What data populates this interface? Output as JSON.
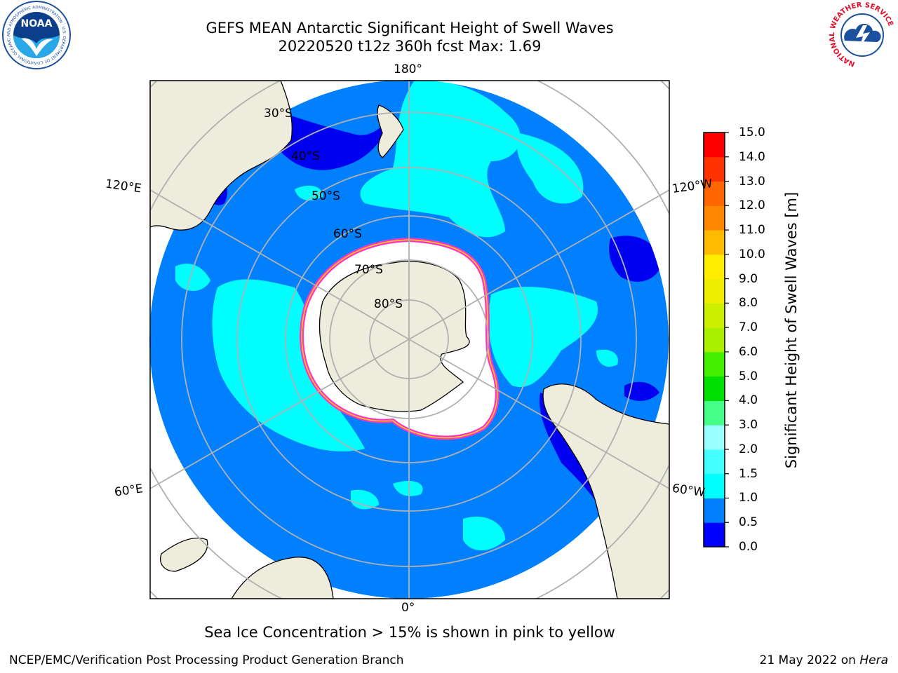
{
  "header": {
    "title_line1": "GEFS MEAN Antarctic Significant Height of Swell Waves",
    "title_line2": "20220520 t12z 360h fcst   Max: 1.69"
  },
  "map": {
    "projection": "south-polar-stereographic",
    "lon_labels": {
      "top": "180°",
      "bottom": "0°",
      "upper_left": "120°E",
      "upper_right": "120°W",
      "lower_left": "60°E",
      "lower_right": "60°W"
    },
    "lat_labels": [
      "30°S",
      "40°S",
      "50°S",
      "60°S",
      "70°S",
      "80°S"
    ],
    "colors": {
      "land": "#eeecdc",
      "ocean_main": "#0080ff",
      "ocean_low": "#0000f0",
      "swell_mid": "#00ffff",
      "grid": "#b0b0b0",
      "sea_ice_edge": "#ff33cc"
    }
  },
  "colorbar": {
    "ticks": [
      "15.0",
      "14.0",
      "13.0",
      "12.0",
      "11.0",
      "10.0",
      "9.0",
      "8.0",
      "7.0",
      "6.0",
      "5.0",
      "4.0",
      "3.0",
      "2.0",
      "1.5",
      "1.0",
      "0.5",
      "0.0"
    ],
    "colors": [
      "#0000ff",
      "#0080ff",
      "#00ffff",
      "#44ffff",
      "#99ffff",
      "#44ff88",
      "#00e000",
      "#44ee00",
      "#aaee00",
      "#ccee00",
      "#eeee00",
      "#ffee00",
      "#ffbb00",
      "#ff8800",
      "#ff6600",
      "#ff3300",
      "#ff0000"
    ],
    "label": "Significant Height of Swell Waves [m]"
  },
  "caption": "Sea Ice Concentration > 15% is shown in pink to yellow",
  "footer": {
    "left": "NCEP/EMC/Verification Post Processing Product Generation Branch",
    "right_prefix": "21 May 2022 on ",
    "right_host": "Hera"
  },
  "logos": {
    "noaa": {
      "text": "NOAA",
      "ring_text": "NATIONAL OCEANIC AND ATMOSPHERIC ADMINISTRATION · U.S. DEPARTMENT OF COMMERCE"
    },
    "nws": {
      "ring_text": "NATIONAL WEATHER SERVICE"
    }
  }
}
